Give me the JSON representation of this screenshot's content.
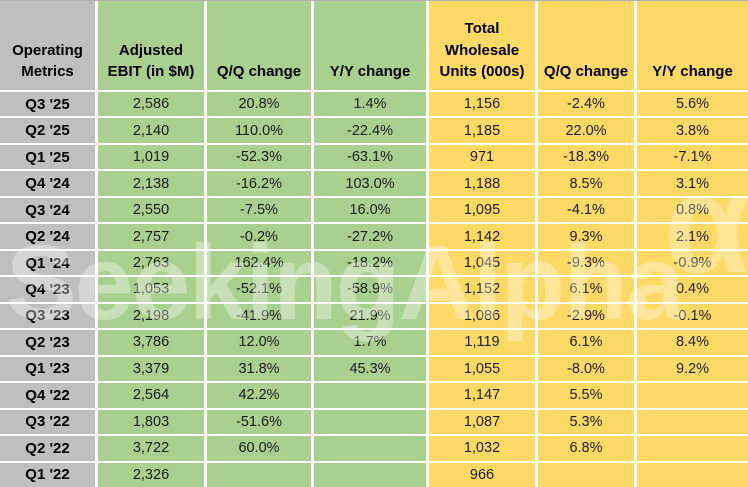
{
  "watermark": {
    "text": "SeekingAlpha",
    "logo_glyph": "α"
  },
  "colors": {
    "green_columns": "#A9D08E",
    "yellow_columns": "#FFD966",
    "label_gray": "#BFBFBF",
    "grid_gap": "#FFFFFF",
    "text": "#1c1c1c"
  },
  "table": {
    "headers": [
      {
        "key": "operating-metrics",
        "label": "Operating\nMetrics",
        "color": "gray"
      },
      {
        "key": "adjusted-ebit",
        "label": "Adjusted\nEBIT (in $M)",
        "color": "green"
      },
      {
        "key": "ebit-qq-change",
        "label": "Q/Q change",
        "color": "green"
      },
      {
        "key": "ebit-yy-change",
        "label": "Y/Y change",
        "color": "green"
      },
      {
        "key": "total-wholesale-units",
        "label": "Total\nWholesale\nUnits (000s)",
        "color": "yellow"
      },
      {
        "key": "units-qq-change",
        "label": "Q/Q change",
        "color": "yellow"
      },
      {
        "key": "units-yy-change",
        "label": "Y/Y change",
        "color": "yellow"
      }
    ],
    "rows": [
      [
        "Q3 '25",
        "2,586",
        "20.8%",
        "1.4%",
        "1,156",
        "-2.4%",
        "5.6%"
      ],
      [
        "Q2 '25",
        "2,140",
        "110.0%",
        "-22.4%",
        "1,185",
        "22.0%",
        "3.8%"
      ],
      [
        "Q1 '25",
        "1,019",
        "-52.3%",
        "-63.1%",
        "971",
        "-18.3%",
        "-7.1%"
      ],
      [
        "Q4 '24",
        "2,138",
        "-16.2%",
        "103.0%",
        "1,188",
        "8.5%",
        "3.1%"
      ],
      [
        "Q3 '24",
        "2,550",
        "-7.5%",
        "16.0%",
        "1,095",
        "-4.1%",
        "0.8%"
      ],
      [
        "Q2 '24",
        "2,757",
        "-0.2%",
        "-27.2%",
        "1,142",
        "9.3%",
        "2.1%"
      ],
      [
        "Q1 '24",
        "2,763",
        "162.4%",
        "-18.2%",
        "1,045",
        "-9.3%",
        "-0.9%"
      ],
      [
        "Q4 '23",
        "1,053",
        "-52.1%",
        "-58.9%",
        "1,152",
        "6.1%",
        "0.4%"
      ],
      [
        "Q3 '23",
        "2,198",
        "-41.9%",
        "21.9%",
        "1,086",
        "-2.9%",
        "-0.1%"
      ],
      [
        "Q2 '23",
        "3,786",
        "12.0%",
        "1.7%",
        "1,119",
        "6.1%",
        "8.4%"
      ],
      [
        "Q1 '23",
        "3,379",
        "31.8%",
        "45.3%",
        "1,055",
        "-8.0%",
        "9.2%"
      ],
      [
        "Q4 '22",
        "2,564",
        "42.2%",
        "",
        "1,147",
        "5.5%",
        ""
      ],
      [
        "Q3 '22",
        "1,803",
        "-51.6%",
        "",
        "1,087",
        "5.3%",
        ""
      ],
      [
        "Q2 '22",
        "3,722",
        "60.0%",
        "",
        "1,032",
        "6.8%",
        ""
      ],
      [
        "Q1 '22",
        "2,326",
        "",
        "",
        "966",
        "",
        ""
      ]
    ]
  },
  "chart_data": {
    "type": "table",
    "title": "Operating Metrics",
    "columns": [
      "Operating Metrics",
      "Adjusted EBIT (in $M)",
      "Q/Q change",
      "Y/Y change",
      "Total Wholesale Units (000s)",
      "Q/Q change",
      "Y/Y change"
    ],
    "rows": [
      [
        "Q3 '25",
        2586,
        "20.8%",
        "1.4%",
        1156,
        "-2.4%",
        "5.6%"
      ],
      [
        "Q2 '25",
        2140,
        "110.0%",
        "-22.4%",
        1185,
        "22.0%",
        "3.8%"
      ],
      [
        "Q1 '25",
        1019,
        "-52.3%",
        "-63.1%",
        971,
        "-18.3%",
        "-7.1%"
      ],
      [
        "Q4 '24",
        2138,
        "-16.2%",
        "103.0%",
        1188,
        "8.5%",
        "3.1%"
      ],
      [
        "Q3 '24",
        2550,
        "-7.5%",
        "16.0%",
        1095,
        "-4.1%",
        "0.8%"
      ],
      [
        "Q2 '24",
        2757,
        "-0.2%",
        "-27.2%",
        1142,
        "9.3%",
        "2.1%"
      ],
      [
        "Q1 '24",
        2763,
        "162.4%",
        "-18.2%",
        1045,
        "-9.3%",
        "-0.9%"
      ],
      [
        "Q4 '23",
        1053,
        "-52.1%",
        "-58.9%",
        1152,
        "6.1%",
        "0.4%"
      ],
      [
        "Q3 '23",
        2198,
        "-41.9%",
        "21.9%",
        1086,
        "-2.9%",
        "-0.1%"
      ],
      [
        "Q2 '23",
        3786,
        "12.0%",
        "1.7%",
        1119,
        "6.1%",
        "8.4%"
      ],
      [
        "Q1 '23",
        3379,
        "31.8%",
        "45.3%",
        1055,
        "-8.0%",
        "9.2%"
      ],
      [
        "Q4 '22",
        2564,
        "42.2%",
        null,
        1147,
        "5.5%",
        null
      ],
      [
        "Q3 '22",
        1803,
        "-51.6%",
        null,
        1087,
        "5.3%",
        null
      ],
      [
        "Q2 '22",
        3722,
        "60.0%",
        null,
        1032,
        "6.8%",
        null
      ],
      [
        "Q1 '22",
        2326,
        null,
        null,
        966,
        null,
        null
      ]
    ]
  }
}
